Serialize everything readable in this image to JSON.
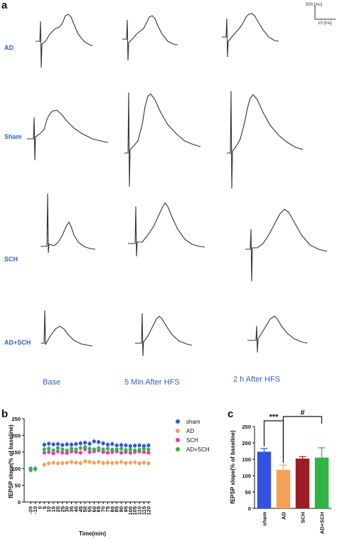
{
  "panels": {
    "a": "a",
    "b": "b",
    "c": "c"
  },
  "scale_bar": {
    "voltage": "500 [mv]",
    "time": "10 [ms]"
  },
  "groups": [
    "AD",
    "Sham",
    "SCH",
    "AD+SCH"
  ],
  "conditions": [
    "Base",
    "5 Min After HFS",
    "2 h After HFS"
  ],
  "chart_data": [
    {
      "type": "scatter",
      "xlabel": "Time(min)",
      "ylabel": "fEPSP slope(% of baseline)",
      "x": [
        -20,
        -10,
        0,
        5,
        10,
        15,
        20,
        25,
        30,
        35,
        40,
        45,
        50,
        55,
        60,
        65,
        70,
        75,
        80,
        85,
        90,
        95,
        100,
        105,
        110,
        115,
        120
      ],
      "xticks": [
        "-20",
        "-10",
        "0",
        "5",
        "10",
        "15",
        "20",
        "25",
        "30",
        "35",
        "40",
        "45",
        "50",
        "55",
        "60",
        "65",
        "70",
        "75",
        "80",
        "85",
        "90",
        "95",
        "100",
        "105",
        "110",
        "115",
        "120"
      ],
      "ylim": [
        0,
        250
      ],
      "yticks": [
        0,
        50,
        100,
        150,
        200,
        250
      ],
      "legend_position": "right",
      "series": [
        {
          "name": "sham",
          "color": "#3352e0",
          "points": [
            [
              -20,
              100
            ],
            [
              -10,
              100
            ],
            [
              5,
              172
            ],
            [
              10,
              175
            ],
            [
              15,
              173
            ],
            [
              20,
              174
            ],
            [
              25,
              171
            ],
            [
              30,
              173
            ],
            [
              35,
              172
            ],
            [
              40,
              174
            ],
            [
              45,
              176
            ],
            [
              50,
              178
            ],
            [
              55,
              175
            ],
            [
              60,
              182
            ],
            [
              65,
              180
            ],
            [
              70,
              176
            ],
            [
              75,
              172
            ],
            [
              80,
              174
            ],
            [
              85,
              170
            ],
            [
              90,
              171
            ],
            [
              95,
              170
            ],
            [
              100,
              168
            ],
            [
              105,
              169
            ],
            [
              110,
              170
            ],
            [
              115,
              168
            ],
            [
              120,
              170
            ]
          ]
        },
        {
          "name": "AD",
          "color": "#f4a15a",
          "points": [
            [
              -20,
              95
            ],
            [
              -10,
              98
            ],
            [
              5,
              112
            ],
            [
              10,
              116
            ],
            [
              15,
              118
            ],
            [
              20,
              116
            ],
            [
              25,
              117
            ],
            [
              30,
              118
            ],
            [
              35,
              120
            ],
            [
              40,
              118
            ],
            [
              45,
              117
            ],
            [
              50,
              122
            ],
            [
              55,
              120
            ],
            [
              60,
              118
            ],
            [
              65,
              120
            ],
            [
              70,
              117
            ],
            [
              75,
              118
            ],
            [
              80,
              117
            ],
            [
              85,
              118
            ],
            [
              90,
              120
            ],
            [
              95,
              117
            ],
            [
              100,
              118
            ],
            [
              105,
              119
            ],
            [
              110,
              116
            ],
            [
              115,
              118
            ],
            [
              120,
              116
            ]
          ]
        },
        {
          "name": "SCH",
          "color": "#e838b5",
          "points": [
            [
              -20,
              96
            ],
            [
              -10,
              99
            ],
            [
              5,
              148
            ],
            [
              10,
              150
            ],
            [
              15,
              146
            ],
            [
              20,
              152
            ],
            [
              25,
              148
            ],
            [
              30,
              147
            ],
            [
              35,
              152
            ],
            [
              40,
              150
            ],
            [
              45,
              148
            ],
            [
              50,
              158
            ],
            [
              55,
              150
            ],
            [
              60,
              152
            ],
            [
              65,
              155
            ],
            [
              70,
              150
            ],
            [
              75,
              148
            ],
            [
              80,
              150
            ],
            [
              85,
              152
            ],
            [
              90,
              148
            ],
            [
              95,
              150
            ],
            [
              100,
              148
            ],
            [
              105,
              150
            ],
            [
              110,
              152
            ],
            [
              115,
              150
            ],
            [
              120,
              148
            ]
          ]
        },
        {
          "name": "AD+SCH",
          "color": "#2fb544",
          "points": [
            [
              -20,
              98
            ],
            [
              -10,
              100
            ],
            [
              5,
              158
            ],
            [
              10,
              160
            ],
            [
              15,
              155
            ],
            [
              20,
              162
            ],
            [
              25,
              158
            ],
            [
              30,
              155
            ],
            [
              35,
              160
            ],
            [
              40,
              158
            ],
            [
              45,
              162
            ],
            [
              50,
              165
            ],
            [
              55,
              160
            ],
            [
              60,
              158
            ],
            [
              65,
              162
            ],
            [
              70,
              158
            ],
            [
              75,
              160
            ],
            [
              80,
              157
            ],
            [
              85,
              158
            ],
            [
              90,
              160
            ],
            [
              95,
              156
            ],
            [
              100,
              158
            ],
            [
              105,
              155
            ],
            [
              110,
              157
            ],
            [
              115,
              160
            ],
            [
              120,
              158
            ]
          ]
        }
      ]
    },
    {
      "type": "bar",
      "ylabel": "fEPSP slope(% of baseline)",
      "categories": [
        "sham",
        "AD",
        "SCH",
        "AD+SCH"
      ],
      "values": [
        173,
        118,
        152,
        155
      ],
      "errors": [
        10,
        14,
        6,
        30
      ],
      "colors": [
        "#3352e0",
        "#f4a15a",
        "#9b1c24",
        "#2fb544"
      ],
      "ylim": [
        0,
        250
      ],
      "yticks": [
        0,
        50,
        100,
        150,
        200,
        250
      ],
      "annotations": [
        {
          "text": "***",
          "between": [
            "sham",
            "AD"
          ]
        },
        {
          "text": "#",
          "between": [
            "AD",
            "AD+SCH"
          ]
        }
      ]
    }
  ]
}
